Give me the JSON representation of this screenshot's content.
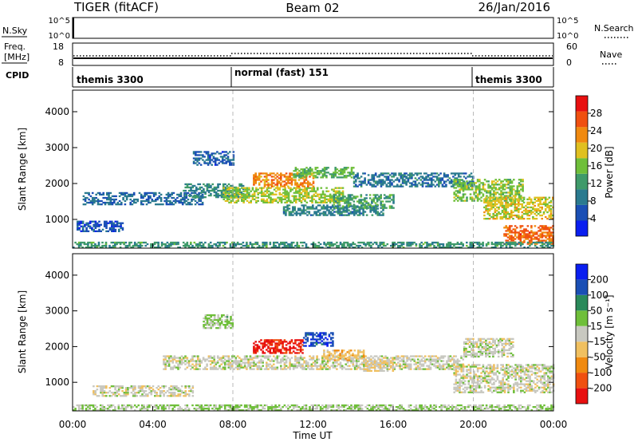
{
  "header": {
    "title": "TIGER (fitACF)",
    "beam": "Beam 02",
    "date": "26/Jan/2016"
  },
  "panels": {
    "nsky": {
      "label": "N.Sky",
      "ticks": [
        "10^5",
        "10^0"
      ],
      "right_label": "N.Search"
    },
    "freq": {
      "label_line1": "Freq.",
      "label_line2": "[MHz]",
      "ticks_left": [
        "18",
        "8"
      ],
      "ticks_right": [
        "60",
        "0"
      ],
      "right_label": "Nave",
      "cpid_label": "CPID"
    },
    "cpid": {
      "segments": [
        {
          "label": "themis 3300",
          "start_h": 0,
          "end_h": 8
        },
        {
          "label": "normal (fast) 151",
          "start_h": 8,
          "end_h": 20
        },
        {
          "label": "themis 3300",
          "start_h": 20,
          "end_h": 24
        }
      ]
    }
  },
  "colors": {
    "power": [
      "#0a1ef0",
      "#1a4fb5",
      "#2a7a8f",
      "#3f9a6a",
      "#6fbf3a",
      "#e0c020",
      "#f08a10",
      "#f05010",
      "#e81010"
    ],
    "velocity": [
      "#e81010",
      "#f05010",
      "#f08a10",
      "#f0c060",
      "#c8c8c0",
      "#6fbf3a",
      "#2a8a5a",
      "#1a4fb5",
      "#0a1ef0"
    ]
  },
  "chart_data": [
    {
      "type": "heatmap",
      "name": "power",
      "xlabel": "Time UT",
      "ylabel": "Slant Range [km]",
      "xlim": [
        0,
        24
      ],
      "ylim": [
        200,
        4600
      ],
      "xticks": [
        "00:00",
        "04:00",
        "08:00",
        "12:00",
        "16:00",
        "20:00",
        "00:00"
      ],
      "yticks": [
        "1000",
        "2000",
        "3000",
        "4000"
      ],
      "colorbar": {
        "label": "Power [dB]",
        "ticks": [
          "4",
          "8",
          "12",
          "16",
          "20",
          "24",
          "28"
        ],
        "range": [
          0,
          30
        ]
      },
      "regions": [
        {
          "t0": 0.5,
          "t1": 6.5,
          "r0": 1400,
          "r1": 1750,
          "level": 7
        },
        {
          "t0": 0.2,
          "t1": 2.5,
          "r0": 650,
          "r1": 950,
          "level": 5
        },
        {
          "t0": 5.5,
          "t1": 8.5,
          "r0": 1600,
          "r1": 2000,
          "level": 10
        },
        {
          "t0": 6.0,
          "t1": 8.0,
          "r0": 2500,
          "r1": 2900,
          "level": 6
        },
        {
          "t0": 7.5,
          "t1": 13.5,
          "r0": 1450,
          "r1": 1900,
          "level": 16
        },
        {
          "t0": 9.0,
          "t1": 12.0,
          "r0": 1900,
          "r1": 2300,
          "level": 22
        },
        {
          "t0": 11.0,
          "t1": 14.0,
          "r0": 2150,
          "r1": 2450,
          "level": 14
        },
        {
          "t0": 10.5,
          "t1": 15.5,
          "r0": 1100,
          "r1": 1400,
          "level": 9
        },
        {
          "t0": 13.0,
          "t1": 16.0,
          "r0": 1300,
          "r1": 1700,
          "level": 12
        },
        {
          "t0": 14.0,
          "t1": 20.0,
          "r0": 1900,
          "r1": 2300,
          "level": 8
        },
        {
          "t0": 19.0,
          "t1": 22.5,
          "r0": 1500,
          "r1": 2100,
          "level": 15
        },
        {
          "t0": 20.5,
          "t1": 24.0,
          "r0": 1000,
          "r1": 1600,
          "level": 18
        },
        {
          "t0": 21.5,
          "t1": 24.0,
          "r0": 300,
          "r1": 800,
          "level": 24
        },
        {
          "t0": 0.0,
          "t1": 24.0,
          "r0": 200,
          "r1": 350,
          "level": 11
        }
      ]
    },
    {
      "type": "heatmap",
      "name": "velocity",
      "xlabel": "Time UT",
      "ylabel": "Slant Range [km]",
      "xlim": [
        0,
        24
      ],
      "ylim": [
        200,
        4600
      ],
      "xticks": [
        "00:00",
        "04:00",
        "08:00",
        "12:00",
        "16:00",
        "20:00",
        "00:00"
      ],
      "yticks": [
        "1000",
        "2000",
        "3000",
        "4000"
      ],
      "colorbar": {
        "label": "Velocity [m s⁻¹]",
        "ticks": [
          "200",
          "100",
          "50",
          "15",
          "-15",
          "-50",
          "-100",
          "-200"
        ],
        "range": [
          -250,
          250
        ]
      },
      "regions": [
        {
          "t0": 4.5,
          "t1": 19.5,
          "r0": 1350,
          "r1": 1750,
          "level": 0
        },
        {
          "t0": 1.0,
          "t1": 6.0,
          "r0": 600,
          "r1": 900,
          "level": 0
        },
        {
          "t0": 9.0,
          "t1": 11.5,
          "r0": 1800,
          "r1": 2200,
          "level": -220
        },
        {
          "t0": 11.5,
          "t1": 13.0,
          "r0": 2000,
          "r1": 2400,
          "level": 180
        },
        {
          "t0": 12.5,
          "t1": 14.5,
          "r0": 1600,
          "r1": 1900,
          "level": -60
        },
        {
          "t0": 14.5,
          "t1": 16.0,
          "r0": 1300,
          "r1": 1600,
          "level": -30
        },
        {
          "t0": 6.5,
          "t1": 8.0,
          "r0": 2500,
          "r1": 2900,
          "level": 40
        },
        {
          "t0": 19.0,
          "t1": 24.0,
          "r0": 700,
          "r1": 1500,
          "level": 0
        },
        {
          "t0": 19.5,
          "t1": 22.0,
          "r0": 1700,
          "r1": 2200,
          "level": 0
        },
        {
          "t0": 0.0,
          "t1": 24.0,
          "r0": 200,
          "r1": 350,
          "level": 30
        }
      ]
    }
  ]
}
